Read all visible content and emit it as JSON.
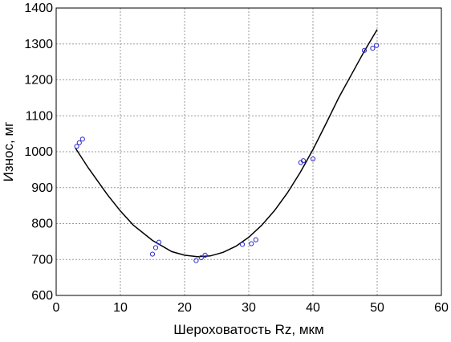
{
  "chart_data": {
    "type": "scatter",
    "title": "",
    "xlabel": "Шероховатость Rz, мкм",
    "ylabel": "Износ, мг",
    "xlim": [
      0,
      60
    ],
    "ylim": [
      600,
      1400
    ],
    "xticks": [
      0,
      10,
      20,
      30,
      40,
      50,
      60
    ],
    "yticks": [
      600,
      700,
      800,
      900,
      1000,
      1100,
      1200,
      1300,
      1400
    ],
    "grid": true,
    "colors": {
      "points": "#2b2bcc",
      "curve": "#000000",
      "grid": "#9a9a9a"
    },
    "series": [
      {
        "values": [
          [
            3.2,
            1015
          ],
          [
            3.6,
            1025
          ],
          [
            4.1,
            1035
          ],
          [
            15.0,
            715
          ],
          [
            15.5,
            733
          ],
          [
            16.0,
            748
          ],
          [
            21.8,
            697
          ],
          [
            22.6,
            705
          ],
          [
            23.2,
            712
          ],
          [
            29.0,
            742
          ],
          [
            30.4,
            744
          ],
          [
            31.1,
            755
          ],
          [
            38.1,
            970
          ],
          [
            38.5,
            975
          ],
          [
            40.0,
            980
          ],
          [
            48.0,
            1282
          ],
          [
            49.3,
            1288
          ],
          [
            49.9,
            1296
          ]
        ]
      },
      {
        "type": "line",
        "values": [
          [
            3,
            1010
          ],
          [
            5,
            955
          ],
          [
            8,
            880
          ],
          [
            10,
            835
          ],
          [
            12,
            796
          ],
          [
            15,
            753
          ],
          [
            18,
            722
          ],
          [
            20,
            712
          ],
          [
            22,
            708
          ],
          [
            24,
            710
          ],
          [
            26,
            720
          ],
          [
            28,
            737
          ],
          [
            30,
            762
          ],
          [
            32,
            795
          ],
          [
            34,
            836
          ],
          [
            36,
            885
          ],
          [
            38,
            942
          ],
          [
            40,
            1006
          ],
          [
            42,
            1077
          ],
          [
            44,
            1150
          ],
          [
            46,
            1215
          ],
          [
            48,
            1280
          ],
          [
            50,
            1340
          ]
        ]
      }
    ]
  }
}
